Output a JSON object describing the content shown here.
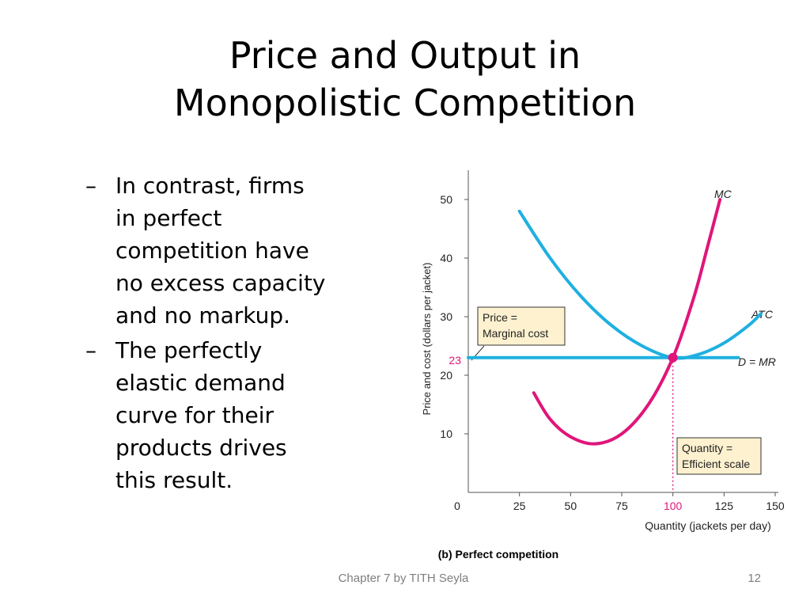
{
  "slide": {
    "title_line1": "Price and Output in",
    "title_line2": "Monopolistic Competition",
    "bullet_marker": "–",
    "bullets": [
      {
        "lines": [
          "In contrast, firms",
          "in perfect",
          "competition have",
          "no excess capacity",
          "and no markup."
        ]
      },
      {
        "lines": [
          "The perfectly",
          "elastic demand",
          "curve for their",
          "products drives",
          "this result."
        ]
      }
    ],
    "footer": "Chapter 7 by TITH Seyla",
    "page_number": "12"
  },
  "colors": {
    "cyan": "#1eb0e0",
    "magenta": "#e0157a",
    "callout_fill": "#fdf1cf",
    "axis": "#555555"
  },
  "chart_data": {
    "type": "line",
    "caption": "(b) Perfect competition",
    "xlabel": "Quantity (jackets per day)",
    "ylabel": "Price and cost (dollars per jacket)",
    "xlim": [
      0,
      150
    ],
    "ylim": [
      0,
      55
    ],
    "x_ticks": [
      "0",
      "25",
      "50",
      "75",
      "100",
      "125",
      "150"
    ],
    "y_ticks": [
      "10",
      "20",
      "30",
      "40",
      "50"
    ],
    "highlight_x_tick": "100",
    "highlight_y_tick": "23",
    "equilibrium": {
      "x": 100,
      "y": 23
    },
    "series": [
      {
        "name": "MC",
        "color_key": "magenta",
        "points": [
          [
            32,
            17
          ],
          [
            40,
            12.5
          ],
          [
            50,
            9.5
          ],
          [
            62,
            8.3
          ],
          [
            75,
            10
          ],
          [
            88,
            15
          ],
          [
            100,
            23
          ],
          [
            110,
            33
          ],
          [
            117,
            42
          ],
          [
            123,
            50
          ]
        ]
      },
      {
        "name": "ATC",
        "color_key": "cyan",
        "points": [
          [
            25,
            48
          ],
          [
            40,
            40
          ],
          [
            55,
            33.5
          ],
          [
            70,
            28.5
          ],
          [
            85,
            25
          ],
          [
            100,
            23
          ],
          [
            112,
            23.5
          ],
          [
            125,
            25.5
          ],
          [
            137,
            28.5
          ],
          [
            143,
            30.5
          ]
        ]
      },
      {
        "name": "D = MR",
        "color_key": "cyan",
        "points": [
          [
            0,
            23
          ],
          [
            132,
            23
          ]
        ]
      }
    ],
    "callouts": [
      {
        "name": "price",
        "lines": [
          "Price =",
          "Marginal cost"
        ]
      },
      {
        "name": "quantity",
        "lines": [
          "Quantity =",
          "Efficient scale"
        ]
      }
    ]
  }
}
